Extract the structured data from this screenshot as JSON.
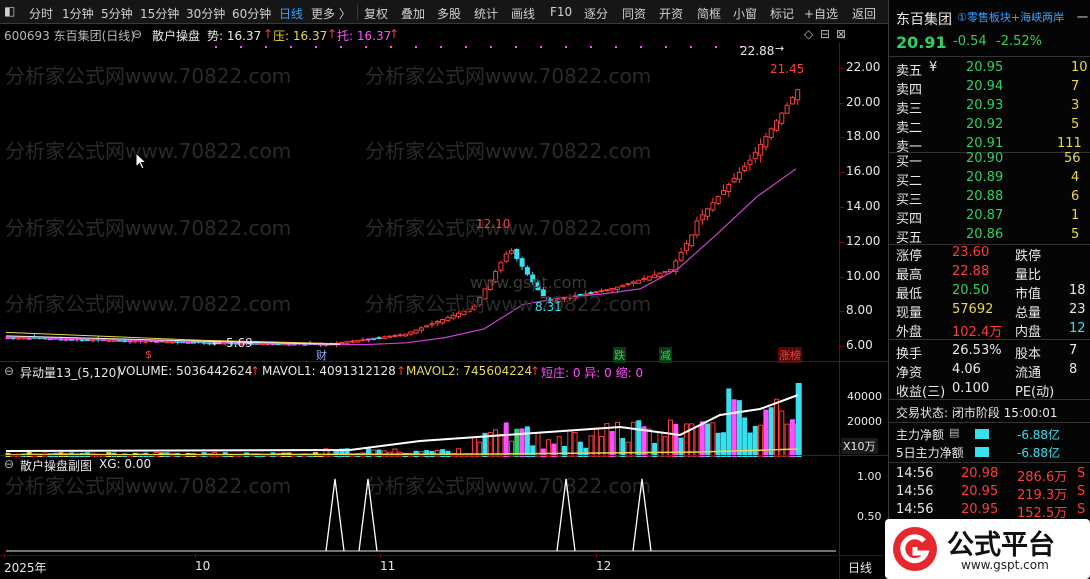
{
  "toolbar": {
    "periods": [
      "分时",
      "1分钟",
      "5分钟",
      "15分钟",
      "30分钟",
      "60分钟",
      "日线",
      "更多 〉"
    ],
    "active_period": "日线",
    "actions": [
      "复权",
      "叠加",
      "多股",
      "统计",
      "画线",
      "F10",
      "逐分",
      "同资",
      "开资",
      "简框",
      "小窗",
      "标记",
      "+自选",
      "返回"
    ]
  },
  "main": {
    "title": "600693 东百集团(日线)",
    "indicator_name": "散户操盘",
    "trend_label": "势: 16.37",
    "pressure_label": "压: 16.37",
    "support_label": "托: 16.37",
    "arrow": "↑",
    "y_ticks": [
      "22.00",
      "20.00",
      "18.00",
      "16.00",
      "14.00",
      "12.00",
      "10.00",
      "8.00",
      "6.00"
    ],
    "annotations": {
      "high": "22.88",
      "peak_close": "21.45",
      "mid_high": "12.10",
      "mid_low": "8.31",
      "low": "5.69"
    },
    "arrow_left": "←",
    "arrow_right": "→",
    "markers": [
      {
        "text": "$",
        "color": "#ff3b3b"
      },
      {
        "text": "财",
        "color": "#8fb0ff"
      },
      {
        "text": "跌",
        "color": "#2fd060"
      },
      {
        "text": "减",
        "color": "#2fd060"
      },
      {
        "text": "涨榜",
        "color": "#ff3b3b"
      }
    ],
    "corner_icons": [
      "◇",
      "⊟",
      "⊠"
    ],
    "watermark": "分析家公式网www.70822.com",
    "watermark_center": "www.gspt.com"
  },
  "volume_pane": {
    "title": "异动量13_(5,120)",
    "volume": "VOLUME: 5036442624",
    "mavol1": "MAVOL1: 4091312128",
    "mavol2": "MAVOL2: 745604224",
    "extra": "短庄: 0  异: 0  缩: 0",
    "arrow": "↑",
    "y_ticks": [
      "40000",
      "20000"
    ],
    "unit": "X10万"
  },
  "sub_pane": {
    "title": "散户操盘副图",
    "xg": "XG: 0.00",
    "y_ticks": [
      "1.00",
      "0.50"
    ]
  },
  "x_axis": {
    "labels": [
      "2025年",
      "10",
      "11",
      "12"
    ],
    "period": "日线"
  },
  "panel": {
    "stock_name": "东百集团",
    "tags": "①零售板块+海峡两岸",
    "tag_edge": "一",
    "price": "20.91",
    "change": "-0.54",
    "change_pct": "-2.52%",
    "asks": [
      {
        "label": "卖五",
        "mark": "¥",
        "price": "20.95",
        "vol": "10"
      },
      {
        "label": "卖四",
        "mark": "",
        "price": "20.94",
        "vol": "7"
      },
      {
        "label": "卖三",
        "mark": "",
        "price": "20.93",
        "vol": "3"
      },
      {
        "label": "卖二",
        "mark": "",
        "price": "20.92",
        "vol": "5"
      },
      {
        "label": "卖一",
        "mark": "",
        "price": "20.91",
        "vol": "111"
      }
    ],
    "bids": [
      {
        "label": "买一",
        "price": "20.90",
        "vol": "56"
      },
      {
        "label": "买二",
        "price": "20.89",
        "vol": "4"
      },
      {
        "label": "买三",
        "price": "20.88",
        "vol": "6"
      },
      {
        "label": "买四",
        "price": "20.87",
        "vol": "1"
      },
      {
        "label": "买五",
        "price": "20.86",
        "vol": "5"
      }
    ],
    "stats": [
      {
        "l1": "涨停",
        "v1": "23.60",
        "c1": "red",
        "l2": "跌停",
        "v2": "",
        "c2": "green"
      },
      {
        "l1": "最高",
        "v1": "22.88",
        "c1": "red",
        "l2": "量比",
        "v2": "",
        "c2": "white"
      },
      {
        "l1": "最低",
        "v1": "20.50",
        "c1": "green",
        "l2": "市值",
        "v2": "18",
        "c2": "white"
      },
      {
        "l1": "现量",
        "v1": "57692",
        "c1": "yellow",
        "l2": "总量",
        "v2": "23",
        "c2": "white"
      },
      {
        "l1": "外盘",
        "v1": "102.4万",
        "c1": "red",
        "l2": "内盘",
        "v2": "12",
        "c2": "cyan"
      }
    ],
    "fund": [
      {
        "l1": "换手",
        "v1": "26.53%",
        "l2": "股本",
        "v2": "7"
      },
      {
        "l1": "净资",
        "v1": "4.06",
        "l2": "流通",
        "v2": "8"
      },
      {
        "l1": "收益(三)",
        "v1": "0.100",
        "l2": "PE(动)",
        "v2": ""
      }
    ],
    "trade_status": "交易状态: 闭市阶段 15:00:01",
    "main_flow": {
      "label": "主力净额",
      "value": "-6.88亿"
    },
    "main_flow5": {
      "label": "5日主力净额",
      "value": "-6.88亿"
    },
    "ticks": [
      {
        "time": "14:56",
        "price": "20.98",
        "vol": "286.6万",
        "side": "S"
      },
      {
        "time": "14:56",
        "price": "20.95",
        "vol": "219.3万",
        "side": "S"
      },
      {
        "time": "14:56",
        "price": "20.95",
        "vol": "152.5万",
        "side": "S"
      }
    ]
  },
  "logo": {
    "brand": "公式平台",
    "url": "www.gspt.com"
  },
  "chart_data": {
    "type": "candlestick",
    "title": "600693 东百集团(日线)",
    "ylim": [
      5.5,
      23.2
    ],
    "y_ticks": [
      6,
      8,
      10,
      12,
      14,
      16,
      18,
      20,
      22
    ],
    "x_labels": [
      "2025年",
      "10",
      "11",
      "12"
    ],
    "annotations": {
      "high": 22.88,
      "low": 5.69,
      "local_high": 12.1,
      "local_low": 8.31,
      "last_close": 21.45
    },
    "trend_line_description_points": [
      6.2,
      6.15,
      6.1,
      6.1,
      6.2,
      6.5,
      7.0,
      8.4,
      8.8,
      9.0,
      9.3,
      10.5,
      12.5,
      14.6,
      16.2
    ]
  }
}
